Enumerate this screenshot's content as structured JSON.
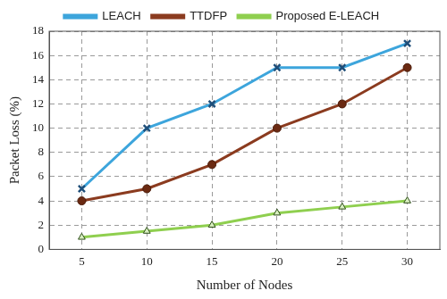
{
  "chart_data": {
    "type": "line",
    "x_label": "Number of Nodes",
    "y_label": "Packet Loss (%)",
    "categories": [
      "5",
      "10",
      "15",
      "20",
      "25",
      "30"
    ],
    "series": [
      {
        "name": "LEACH",
        "color": "#3da5dc",
        "marker": "x",
        "values": [
          5,
          10,
          12,
          15,
          15,
          17
        ]
      },
      {
        "name": "TTDFP",
        "color": "#8b3b1f",
        "marker": "circle",
        "values": [
          4,
          5,
          7,
          10,
          12,
          15
        ]
      },
      {
        "name": "Proposed E-LEACH",
        "color": "#8fcf4f",
        "marker": "triangle",
        "values": [
          1,
          1.5,
          2,
          3,
          3.5,
          4
        ]
      }
    ],
    "ylim": [
      0,
      18
    ],
    "yticks": [
      0,
      2,
      4,
      6,
      8,
      10,
      12,
      14,
      16,
      18
    ],
    "grid": true,
    "legend": "top"
  }
}
